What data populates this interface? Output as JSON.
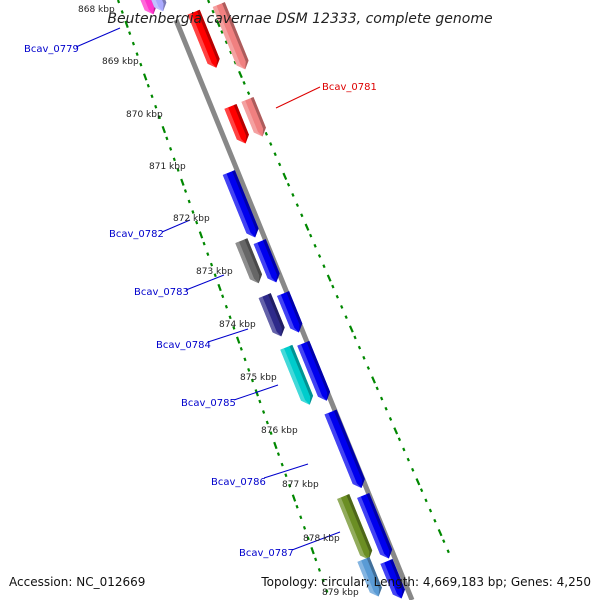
{
  "title": "Beutenbergia cavernae DSM 12333, complete genome",
  "footer": {
    "accession": "Accession: NC_012669",
    "topology": "Topology: circular; Length: 4,669,183 bp; Genes: 4,250"
  },
  "ruler": [
    "868 kbp",
    "869 kbp",
    "870 kbp",
    "871 kbp",
    "872 kbp",
    "873 kbp",
    "874 kbp",
    "875 kbp",
    "876 kbp",
    "877 kbp",
    "878 kbp",
    "879 kbp"
  ],
  "gene_labels": [
    {
      "text": "Bcav_0779",
      "color": "#0000cc"
    },
    {
      "text": "Bcav_0781",
      "color": "#dd0000"
    },
    {
      "text": "Bcav_0782",
      "color": "#0000cc"
    },
    {
      "text": "Bcav_0783",
      "color": "#0000cc"
    },
    {
      "text": "Bcav_0784",
      "color": "#0000cc"
    },
    {
      "text": "Bcav_0785",
      "color": "#0000cc"
    },
    {
      "text": "Bcav_0786",
      "color": "#0000cc"
    },
    {
      "text": "Bcav_0787",
      "color": "#0000cc"
    }
  ],
  "colors": {
    "red": "#ff0000",
    "pink": "#f08080",
    "blue": "#0000ee",
    "gray": "#666666",
    "purple": "#2e2a8a",
    "cyan": "#00cccc",
    "olive": "#6b8e23",
    "magenta": "#ff33cc",
    "backbone": "#888888",
    "dash": "#008800"
  }
}
